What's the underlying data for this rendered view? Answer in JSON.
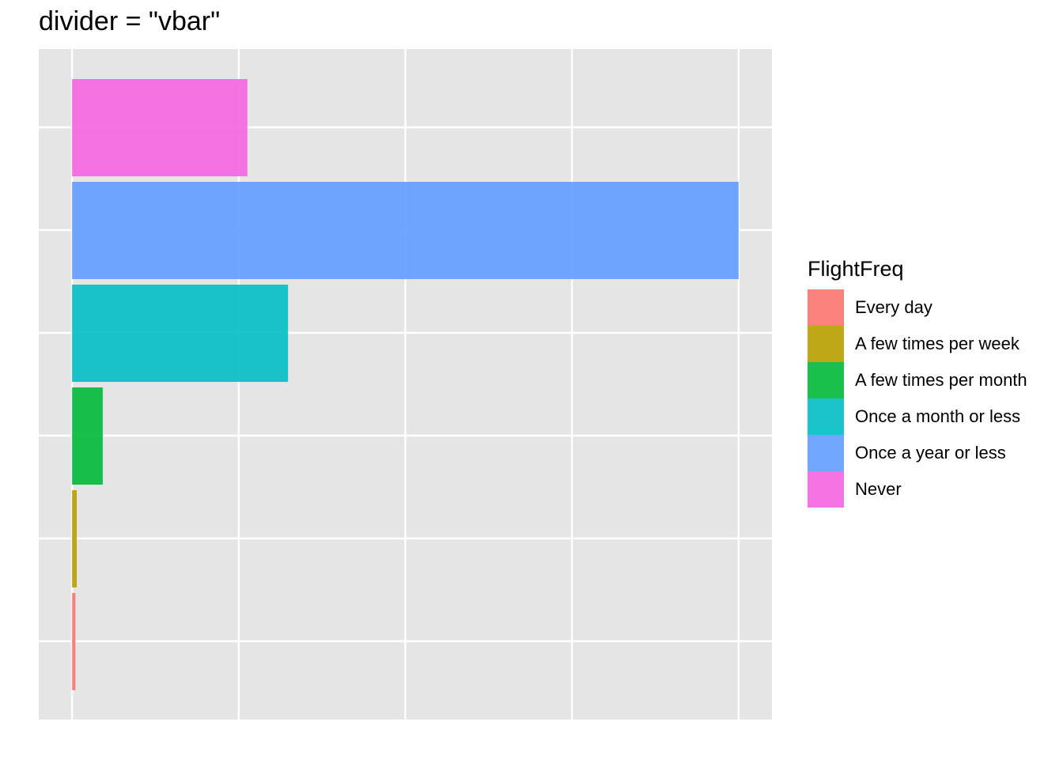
{
  "chart_data": {
    "type": "bar",
    "orientation": "horizontal",
    "title": "divider = \"vbar\"",
    "xlabel": "",
    "ylabel": "",
    "xlim": [
      -0.05,
      1.05
    ],
    "x_gridlines": [
      0,
      0.25,
      0.5,
      0.75,
      1.0
    ],
    "y_gridlines_count": 6,
    "grid": true,
    "panel_background": "#e5e5e5",
    "legend": {
      "title": "FlightFreq",
      "placement": "right"
    },
    "categories": [
      "Every day",
      "A few times per week",
      "A few times per month",
      "Once a month or less",
      "Once a year or less",
      "Never"
    ],
    "colors": [
      "#f8766d",
      "#b79f00",
      "#00ba38",
      "#00bfc4",
      "#619cff",
      "#f564e3"
    ],
    "values": [
      0.005,
      0.007,
      0.046,
      0.324,
      1.0,
      0.263
    ]
  }
}
